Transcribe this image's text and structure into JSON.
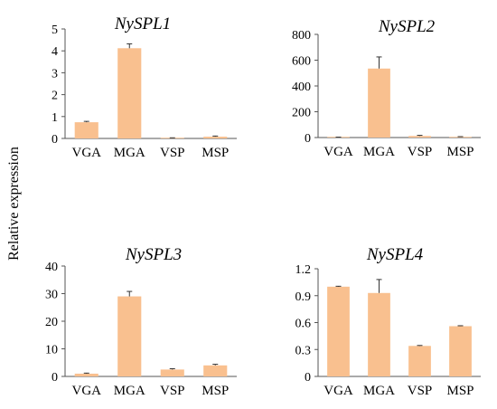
{
  "figure": {
    "ylabel": "Relative expression",
    "bar_color": "#f9c08f",
    "error_color": "#333333"
  },
  "chart_data": [
    {
      "type": "bar",
      "title": "NySPL1",
      "categories": [
        "VGA",
        "MGA",
        "VSP",
        "MSP"
      ],
      "values": [
        0.74,
        4.12,
        0.02,
        0.08
      ],
      "errors": [
        0.04,
        0.2,
        0.01,
        0.03
      ],
      "ylim": [
        0,
        5
      ],
      "yticks": [
        "0",
        "1",
        "2",
        "3",
        "4",
        "5"
      ]
    },
    {
      "type": "bar",
      "title": "NySPL2",
      "categories": [
        "VGA",
        "MGA",
        "VSP",
        "MSP"
      ],
      "values": [
        2,
        535,
        12,
        5
      ],
      "errors": [
        1,
        90,
        5,
        2
      ],
      "ylim": [
        0,
        800
      ],
      "yticks": [
        "0",
        "200",
        "400",
        "600",
        "800"
      ]
    },
    {
      "type": "bar",
      "title": "NySPL3",
      "categories": [
        "VGA",
        "MGA",
        "VSP",
        "MSP"
      ],
      "values": [
        1,
        29,
        2.5,
        4
      ],
      "errors": [
        0.2,
        1.8,
        0.3,
        0.4
      ],
      "ylim": [
        0,
        40
      ],
      "yticks": [
        "0",
        "10",
        "20",
        "30",
        "40"
      ]
    },
    {
      "type": "bar",
      "title": "NySPL4",
      "categories": [
        "VGA",
        "MGA",
        "VSP",
        "MSP"
      ],
      "values": [
        1.0,
        0.93,
        0.34,
        0.56
      ],
      "errors": [
        0.005,
        0.15,
        0.005,
        0.005
      ],
      "ylim": [
        0,
        1.2
      ],
      "yticks": [
        "0",
        "0.3",
        "0.6",
        "0.9",
        "1.2"
      ]
    }
  ]
}
